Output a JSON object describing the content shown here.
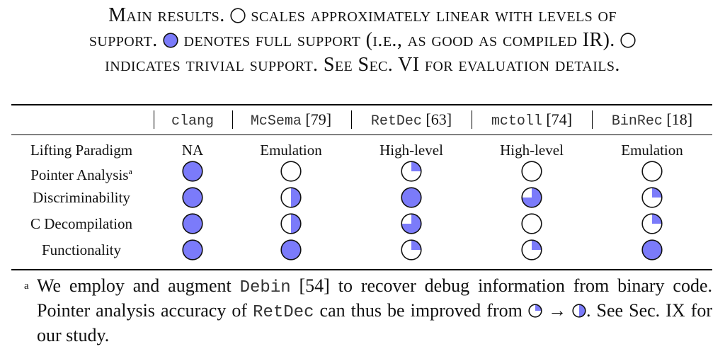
{
  "caption": {
    "line1_a": "Main results.",
    "line1_b": "scales approximately linear with levels of",
    "line2_a": "support.",
    "line2_b": "denotes full support (i.e., as good as compiled IR).",
    "line3": "indicates trivial support. See Sec. VI for evaluation details."
  },
  "table": {
    "columns": [
      {
        "tool": "clang",
        "ref": ""
      },
      {
        "tool": "McSema",
        "ref": "[79]"
      },
      {
        "tool": "RetDec",
        "ref": "[63]"
      },
      {
        "tool": "mctoll",
        "ref": "[74]"
      },
      {
        "tool": "BinRec",
        "ref": "[18]"
      }
    ],
    "paradigm_label": "Lifting Paradigm",
    "paradigm_values": [
      "NA",
      "Emulation",
      "High-level",
      "High-level",
      "Emulation"
    ],
    "rows": [
      {
        "label": "Pointer Analysis",
        "sup": "a",
        "levels": [
          1,
          0,
          0.25,
          0,
          0
        ]
      },
      {
        "label": "Discriminability",
        "sup": "",
        "levels": [
          1,
          0.5,
          1,
          0.75,
          0.25
        ]
      },
      {
        "label": "C Decompilation",
        "sup": "",
        "levels": [
          1,
          0.5,
          0.75,
          0,
          0.25
        ]
      },
      {
        "label": "Functionality",
        "sup": "",
        "levels": [
          1,
          1,
          0.25,
          0.25,
          1
        ]
      }
    ]
  },
  "footnote": {
    "mark": "a",
    "t1": "We employ and augment",
    "m1": "Debin",
    "t2": "[54] to recover debug information from binary code. Pointer analysis accuracy of",
    "m2": "RetDec",
    "t3": "can thus be improved from",
    "arrow": "→",
    "t4": ". See Sec. IX for our study."
  },
  "colors": {
    "fill": "#7b7bfa",
    "stroke": "#111111"
  }
}
